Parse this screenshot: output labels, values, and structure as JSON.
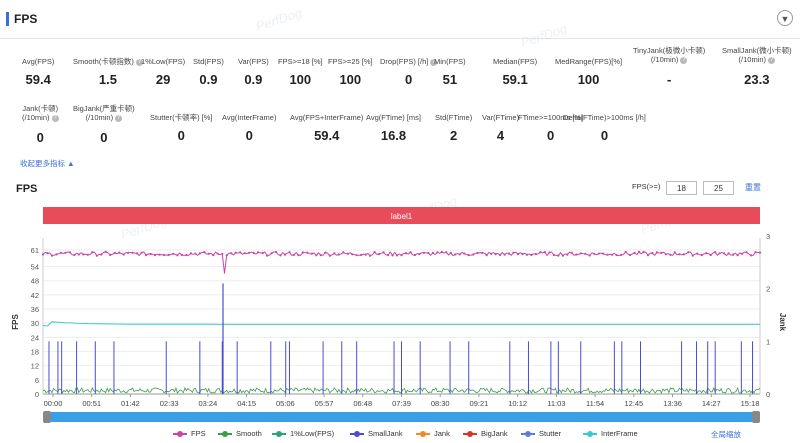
{
  "header": {
    "title": "FPS",
    "collapse_icon": "chevron-down-icon",
    "watermark": "PerfDog"
  },
  "metrics": [
    {
      "label": "Avg(FPS)",
      "value": "59.4",
      "help": false
    },
    {
      "label": "Smooth(卡顿指数)",
      "value": "1.5",
      "help": true
    },
    {
      "label": "1%Low(FPS)",
      "value": "29",
      "help": false
    },
    {
      "label": "Std(FPS)",
      "value": "0.9",
      "help": false
    },
    {
      "label": "Var(FPS)",
      "value": "0.9",
      "help": false
    },
    {
      "label": "FPS>=18 [%]",
      "value": "100",
      "help": false
    },
    {
      "label": "FPS>=25 [%]",
      "value": "100",
      "help": false
    },
    {
      "label": "Drop(FPS) [/h]",
      "value": "0",
      "help": true
    },
    {
      "label": "Min(FPS)",
      "value": "51",
      "help": false
    },
    {
      "label": "Median(FPS)",
      "value": "59.1",
      "help": false
    },
    {
      "label": "MedRange(FPS)[%]",
      "value": "100",
      "help": false
    },
    {
      "label": "TinyJank(极微小卡顿)",
      "label2": "(/10min)",
      "value": "-",
      "help": true
    },
    {
      "label": "SmallJank(微小卡顿)",
      "label2": "(/10min)",
      "value": "23.3",
      "help": true
    },
    {
      "label": "Jank(卡顿)",
      "label2": "(/10min)",
      "value": "0",
      "help": true
    },
    {
      "label": "BigJank(严重卡顿)",
      "label2": "(/10min)",
      "value": "0",
      "help": true
    },
    {
      "label": "Stutter(卡顿率) [%]",
      "value": "0",
      "help": false
    },
    {
      "label": "Avg(InterFrame)",
      "value": "0",
      "help": false
    },
    {
      "label": "Avg(FPS+InterFrame)",
      "value": "59.4",
      "help": false
    },
    {
      "label": "Avg(FTime) [ms]",
      "value": "16.8",
      "help": false
    },
    {
      "label": "Std(FTime)",
      "value": "2",
      "help": false
    },
    {
      "label": "Var(FTime)",
      "value": "4",
      "help": false
    },
    {
      "label": "FTime>=100ms [%]",
      "value": "0",
      "help": false
    },
    {
      "label": "Delta(FTime)>100ms [/h]",
      "value": "0",
      "help": false
    }
  ],
  "more_link": "收起更多指标 ▲",
  "chart": {
    "title": "FPS",
    "threshold_label": "FPS(>=)",
    "threshold_1": "18",
    "threshold_2": "25",
    "reset_label": "重置",
    "zoom_label": "全局缩放",
    "label_bar": "label1",
    "label_color": "#e84c5b"
  },
  "chart_data": {
    "type": "line",
    "title": "FPS",
    "ylabel": "FPS",
    "y2label": "Jank",
    "ylim": [
      0,
      61
    ],
    "y2lim": [
      0,
      3
    ],
    "yticks": [
      "0",
      "6",
      "12",
      "18",
      "24",
      "30",
      "36",
      "42",
      "48",
      "54",
      "61"
    ],
    "y2ticks": [
      "0",
      "1",
      "2",
      "3"
    ],
    "x_ticks": [
      "00:00",
      "00:51",
      "01:42",
      "02:33",
      "03:24",
      "04:15",
      "05:06",
      "05:57",
      "06:48",
      "07:39",
      "08:30",
      "09:21",
      "10:12",
      "11:03",
      "11:54",
      "12:45",
      "13:36",
      "14:27",
      "15:18"
    ],
    "x_max_seconds": 960,
    "series": [
      {
        "name": "FPS",
        "color": "#cc44aa",
        "baseline": 59.4,
        "min": 51,
        "min_at_seconds": 242
      },
      {
        "name": "Smooth",
        "color": "#3a9e4a",
        "level": 1.5
      },
      {
        "name": "1%Low(FPS)",
        "color": "#2aa37a"
      },
      {
        "name": "SmallJank",
        "color": "#4b4bd6",
        "spikes_seconds": [
          8,
          20,
          25,
          45,
          70,
          95,
          165,
          210,
          240,
          260,
          305,
          325,
          330,
          375,
          400,
          420,
          470,
          480,
          505,
          545,
          570,
          625,
          650,
          680,
          690,
          720,
          765,
          775,
          800,
          855,
          875,
          890,
          900,
          935,
          950
        ],
        "big_spike_seconds": 241
      },
      {
        "name": "Jank",
        "color": "#f08a24"
      },
      {
        "name": "BigJank",
        "color": "#d9342c"
      },
      {
        "name": "Stutter",
        "color": "#5b7be0"
      },
      {
        "name": "InterFrame",
        "color": "#3cc9c9",
        "start": 31,
        "settle": 29.5
      }
    ]
  },
  "legend": [
    {
      "name": "FPS",
      "color": "#cc44aa"
    },
    {
      "name": "Smooth",
      "color": "#3a9e4a"
    },
    {
      "name": "1%Low(FPS)",
      "color": "#2aa37a"
    },
    {
      "name": "SmallJank",
      "color": "#4b4bd6"
    },
    {
      "name": "Jank",
      "color": "#f08a24"
    },
    {
      "name": "BigJank",
      "color": "#d9342c"
    },
    {
      "name": "Stutter",
      "color": "#5b7be0"
    },
    {
      "name": "InterFrame",
      "color": "#3cc9c9"
    }
  ]
}
